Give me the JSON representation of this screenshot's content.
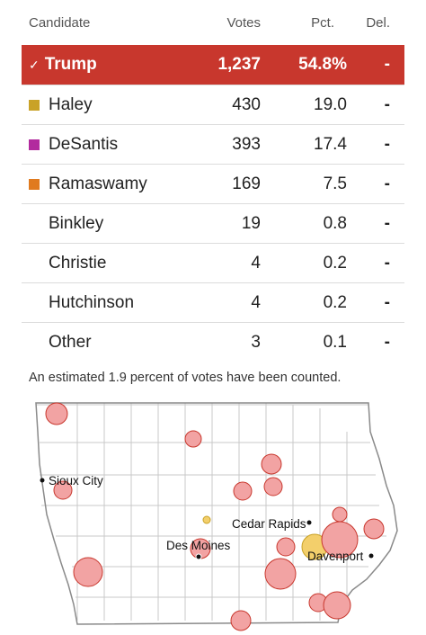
{
  "table": {
    "headers": {
      "candidate": "Candidate",
      "votes": "Votes",
      "pct": "Pct.",
      "del": "Del."
    },
    "rows": [
      {
        "name": "Trump",
        "votes": "1,237",
        "pct": "54.8%",
        "del": "-",
        "winner": true,
        "color": "#c8372d"
      },
      {
        "name": "Haley",
        "votes": "430",
        "pct": "19.0",
        "del": "-",
        "color": "#c9a227"
      },
      {
        "name": "DeSantis",
        "votes": "393",
        "pct": "17.4",
        "del": "-",
        "color": "#b22a9e"
      },
      {
        "name": "Ramaswamy",
        "votes": "169",
        "pct": "7.5",
        "del": "-",
        "color": "#e07a1f"
      },
      {
        "name": "Binkley",
        "votes": "19",
        "pct": "0.8",
        "del": "-"
      },
      {
        "name": "Christie",
        "votes": "4",
        "pct": "0.2",
        "del": "-"
      },
      {
        "name": "Hutchinson",
        "votes": "4",
        "pct": "0.2",
        "del": "-"
      },
      {
        "name": "Other",
        "votes": "3",
        "pct": "0.1",
        "del": "-"
      }
    ],
    "winner_check": "✓"
  },
  "note": "An estimated 1.9 percent of votes have been counted.",
  "map": {
    "cities": [
      {
        "name": "Sioux City"
      },
      {
        "name": "Cedar Rapids"
      },
      {
        "name": "Des Moines"
      },
      {
        "name": "Davenport"
      }
    ],
    "colors": {
      "trump": "#f2a3a3",
      "trump_stroke": "#c8372d",
      "haley": "#f3cf6b",
      "haley_stroke": "#c9a227",
      "border": "#c8c8c8",
      "outline": "#8a8a8a"
    }
  }
}
